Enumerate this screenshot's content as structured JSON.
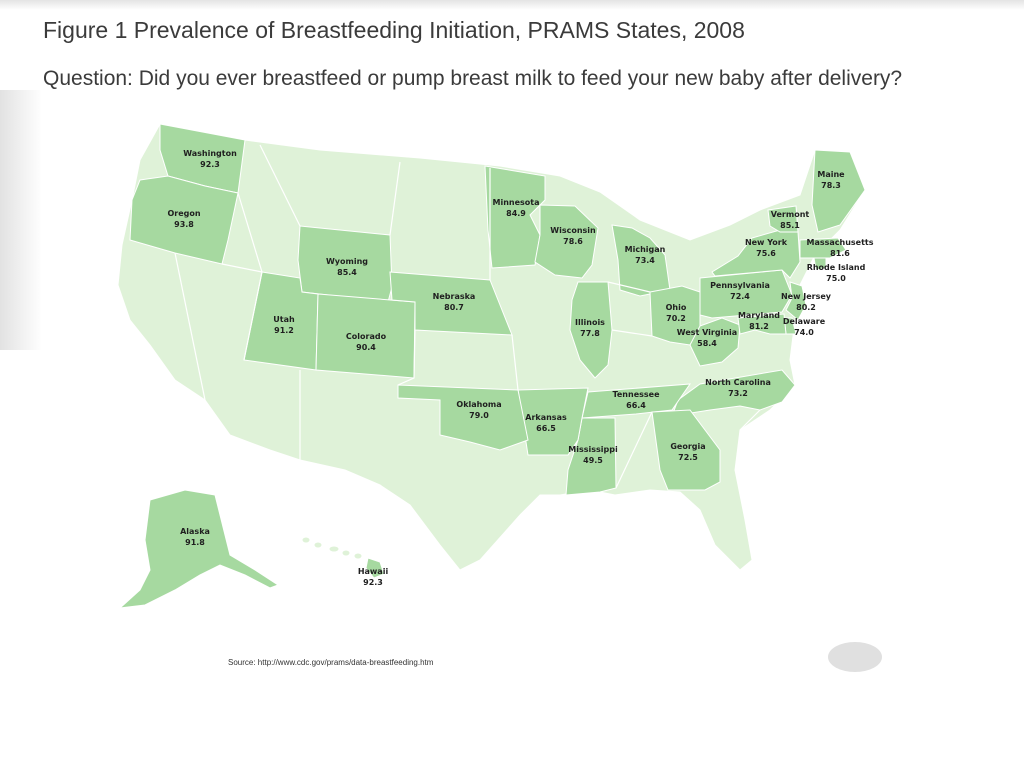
{
  "title": "Figure 1 Prevalence of Breastfeeding Initiation, PRAMS States, 2008",
  "question": "Question: Did you ever breastfeed or pump breast milk to feed your new baby after delivery?",
  "source": "Source: http://www.cdc.gov/prams/data-breastfeeding.htm",
  "colors": {
    "prams_state": "#a6d9a0",
    "non_prams_state": "#dff2d8",
    "border": "#ffffff",
    "outline": "#6faa66"
  },
  "states": [
    {
      "name": "Washington",
      "value": "92.3"
    },
    {
      "name": "Oregon",
      "value": "93.8"
    },
    {
      "name": "Wyoming",
      "value": "85.4"
    },
    {
      "name": "Utah",
      "value": "91.2"
    },
    {
      "name": "Colorado",
      "value": "90.4"
    },
    {
      "name": "Nebraska",
      "value": "80.7"
    },
    {
      "name": "Minnesota",
      "value": "84.9"
    },
    {
      "name": "Wisconsin",
      "value": "78.6"
    },
    {
      "name": "Michigan",
      "value": "73.4"
    },
    {
      "name": "Illinois",
      "value": "77.8"
    },
    {
      "name": "Ohio",
      "value": "70.2"
    },
    {
      "name": "West Virginia",
      "value": "58.4"
    },
    {
      "name": "Pennsylvania",
      "value": "72.4"
    },
    {
      "name": "New York",
      "value": "75.6"
    },
    {
      "name": "Vermont",
      "value": "85.1"
    },
    {
      "name": "Maine",
      "value": "78.3"
    },
    {
      "name": "Massachusetts",
      "value": "81.6"
    },
    {
      "name": "Rhode Island",
      "value": "75.0"
    },
    {
      "name": "New Jersey",
      "value": "80.2"
    },
    {
      "name": "Delaware",
      "value": "74.0"
    },
    {
      "name": "Maryland",
      "value": "81.2"
    },
    {
      "name": "North Carolina",
      "value": "73.2"
    },
    {
      "name": "Tennessee",
      "value": "66.4"
    },
    {
      "name": "Georgia",
      "value": "72.5"
    },
    {
      "name": "Mississippi",
      "value": "49.5"
    },
    {
      "name": "Arkansas",
      "value": "66.5"
    },
    {
      "name": "Oklahoma",
      "value": "79.0"
    },
    {
      "name": "Alaska",
      "value": "91.8"
    },
    {
      "name": "Hawaii",
      "value": "92.3"
    }
  ]
}
